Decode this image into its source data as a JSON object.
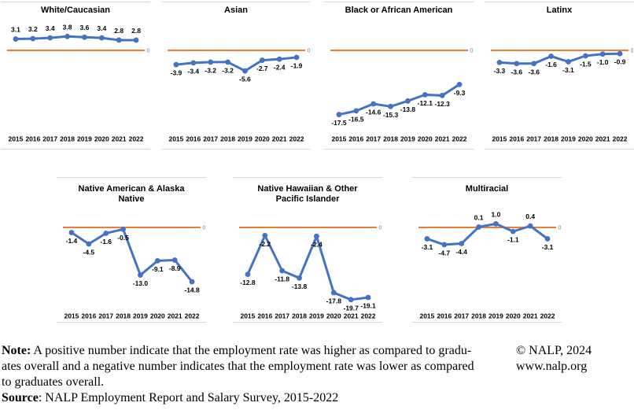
{
  "style": {
    "line_color": "#4472C4",
    "zero_line_color": "#ED7D31",
    "zero_label": "0",
    "label_color": "#000000",
    "zero_label_color": "#808080"
  },
  "chart_data": [
    {
      "type": "line",
      "title_lines": [
        "White/Caucasian"
      ],
      "x": [
        "2015",
        "2016",
        "2017",
        "2018",
        "2019",
        "2020",
        "2021",
        "2022"
      ],
      "values": [
        3.1,
        3.2,
        3.4,
        3.8,
        3.6,
        3.4,
        2.8,
        2.8
      ],
      "ylim": [
        -22.5,
        7.5
      ],
      "zero_line": true
    },
    {
      "type": "line",
      "title_lines": [
        "Asian"
      ],
      "x": [
        "2015",
        "2016",
        "2017",
        "2018",
        "2019",
        "2020",
        "2021",
        "2022"
      ],
      "values": [
        -3.9,
        -3.4,
        -3.2,
        -3.2,
        -5.6,
        -2.7,
        -2.4,
        -1.9
      ],
      "ylim": [
        -22.5,
        7.5
      ],
      "zero_line": true
    },
    {
      "type": "line",
      "title_lines": [
        "Black or African American"
      ],
      "x": [
        "2015",
        "2016",
        "2017",
        "2018",
        "2019",
        "2020",
        "2021",
        "2022"
      ],
      "values": [
        -17.5,
        -16.5,
        -14.6,
        -15.3,
        -13.8,
        -12.1,
        -12.3,
        -9.3
      ],
      "ylim": [
        -22.5,
        7.5
      ],
      "zero_line": true
    },
    {
      "type": "line",
      "title_lines": [
        "Latinx"
      ],
      "x": [
        "2015",
        "2016",
        "2017",
        "2018",
        "2019",
        "2020",
        "2021",
        "2022"
      ],
      "values": [
        -3.3,
        -3.6,
        -3.6,
        -1.6,
        -3.1,
        -1.5,
        -1.0,
        -0.9
      ],
      "ylim": [
        -22.5,
        7.5
      ],
      "zero_line": true
    },
    {
      "type": "line",
      "title_lines": [
        "Native American & Alaska",
        "Native"
      ],
      "x": [
        "2015",
        "2016",
        "2017",
        "2018",
        "2019",
        "2020",
        "2021",
        "2022"
      ],
      "values": [
        -1.4,
        -4.5,
        -1.6,
        -0.5,
        -13.0,
        -9.1,
        -8.9,
        -14.8
      ],
      "ylim": [
        -22.5,
        7.5
      ],
      "zero_line": true
    },
    {
      "type": "line",
      "title_lines": [
        "Native Hawaiian & Other",
        "Pacific Islander"
      ],
      "x": [
        "2015",
        "2016",
        "2017",
        "2018",
        "2019",
        "2020",
        "2021",
        "2022"
      ],
      "values": [
        -12.8,
        -2.2,
        -11.8,
        -13.8,
        -2.4,
        -17.8,
        -19.7,
        -19.1
      ],
      "ylim": [
        -22.5,
        7.5
      ],
      "zero_line": true
    },
    {
      "type": "line",
      "title_lines": [
        "Multiracial"
      ],
      "x": [
        "2015",
        "2016",
        "2017",
        "2018",
        "2019",
        "2020",
        "2021",
        "2022"
      ],
      "values": [
        -3.1,
        -4.7,
        -4.4,
        0.1,
        1.0,
        -1.1,
        0.4,
        -3.1
      ],
      "ylim": [
        -22.5,
        7.5
      ],
      "zero_line": true
    }
  ],
  "footer": {
    "note_label": "Note:",
    "note_line1": " A positive number indicate that the employment rate was higher as compared to gradu-",
    "note_line2": "ates overall and a negative number indicates that the employment rate was lower as compared",
    "note_line3": "to graduates overall.",
    "source_label": "Source",
    "source_text": ": NALP Employment Report and Salary Survey, 2015-2022",
    "copyright": "© NALP, 2024",
    "website": "www.nalp.org"
  }
}
